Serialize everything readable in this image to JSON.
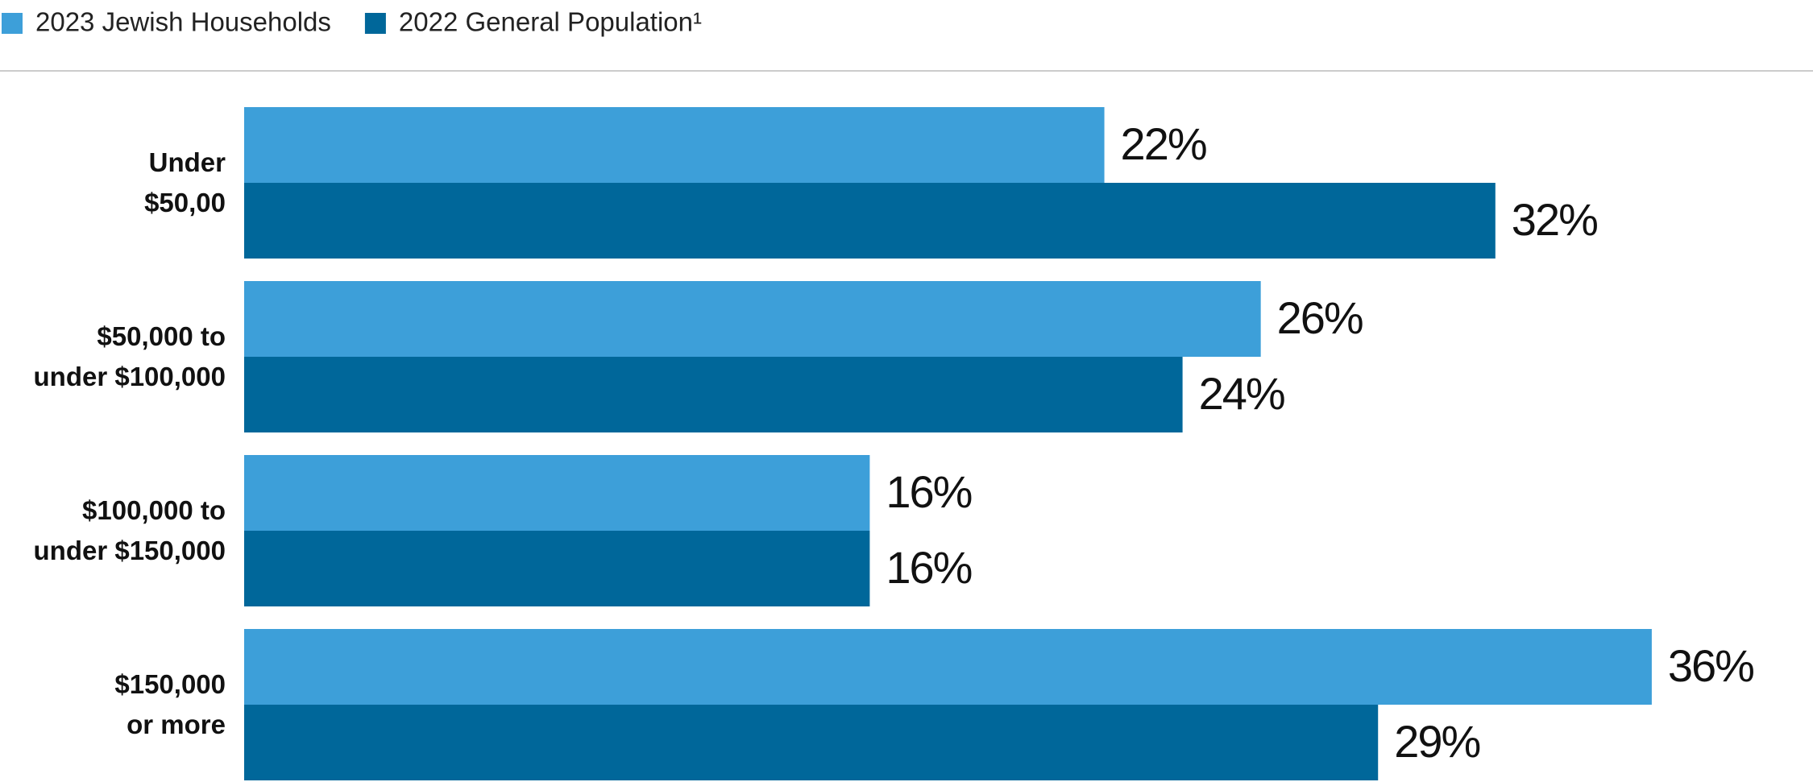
{
  "chart_data": {
    "type": "bar",
    "orientation": "horizontal",
    "categories": [
      "Under\n$50,00",
      "$50,000 to\nunder $100,000",
      "$100,000 to\nunder $150,000",
      "$150,000\nor more"
    ],
    "series": [
      {
        "name": "2023 Jewish Households",
        "color": "#3d9fd9",
        "values": [
          22,
          26,
          16,
          36
        ],
        "value_labels": [
          "22%",
          "26%",
          "16%",
          "36%"
        ]
      },
      {
        "name": "2022 General Population¹",
        "color": "#00679a",
        "values": [
          32,
          24,
          16,
          29
        ],
        "value_labels": [
          "32%",
          "24%",
          "16%",
          "29%"
        ]
      }
    ],
    "xlim": [
      0,
      40
    ],
    "legend": "top-left"
  }
}
